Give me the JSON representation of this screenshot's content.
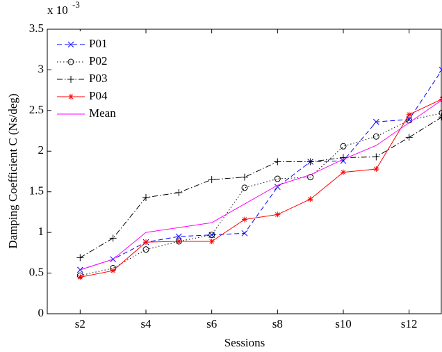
{
  "chart_data": {
    "type": "line",
    "y_label": "Damping Coefficient C (Ns/deg)",
    "x_label": "Sessions",
    "y_multiplier": {
      "base": "x 10",
      "exponent": "-3"
    },
    "x": [
      2,
      3,
      4,
      5,
      6,
      7,
      8,
      9,
      10,
      11,
      12,
      13
    ],
    "xlim": [
      1,
      13
    ],
    "xticks": [
      {
        "value": 2,
        "label": "s2"
      },
      {
        "value": 4,
        "label": "s4"
      },
      {
        "value": 6,
        "label": "s6"
      },
      {
        "value": 8,
        "label": "s8"
      },
      {
        "value": 10,
        "label": "s10"
      },
      {
        "value": 12,
        "label": "s12"
      }
    ],
    "ylim": [
      0,
      3.5
    ],
    "yticks": [
      0,
      0.5,
      1,
      1.5,
      2,
      2.5,
      3,
      3.5
    ],
    "legend": "upper-left",
    "series": [
      {
        "name": "P01",
        "color": "#0000ff",
        "dash": "dashed",
        "marker": "x",
        "values": [
          0.54,
          0.67,
          0.88,
          0.95,
          0.97,
          0.99,
          1.56,
          1.87,
          1.88,
          2.36,
          2.39,
          3.0
        ]
      },
      {
        "name": "P02",
        "color": "#000000",
        "dash": "dotted",
        "marker": "circle",
        "values": [
          0.47,
          0.56,
          0.79,
          0.89,
          0.97,
          1.55,
          1.66,
          1.68,
          2.06,
          2.18,
          2.38,
          2.47
        ]
      },
      {
        "name": "P03",
        "color": "#000000",
        "dash": "dashdot",
        "marker": "plus",
        "values": [
          0.69,
          0.93,
          1.43,
          1.49,
          1.65,
          1.68,
          1.87,
          1.87,
          1.92,
          1.93,
          2.17,
          2.42
        ]
      },
      {
        "name": "P04",
        "color": "#ff0000",
        "dash": "solid",
        "marker": "star",
        "values": [
          0.45,
          0.53,
          0.88,
          0.89,
          0.89,
          1.16,
          1.22,
          1.41,
          1.74,
          1.78,
          2.45,
          2.64
        ]
      },
      {
        "name": "Mean",
        "color": "#ff00ff",
        "dash": "solid",
        "marker": "none",
        "values": [
          0.54,
          0.67,
          1.0,
          1.06,
          1.12,
          1.35,
          1.58,
          1.71,
          1.9,
          2.07,
          2.35,
          2.63
        ]
      }
    ]
  }
}
